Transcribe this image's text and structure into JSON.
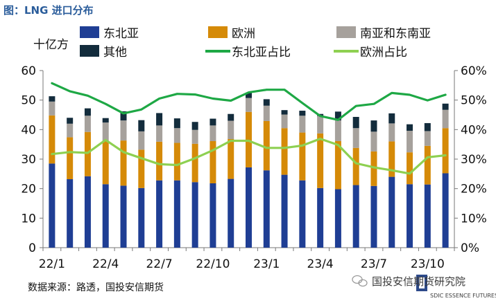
{
  "header": {
    "title": "图：LNG 进口分布"
  },
  "source": "数据来源：路透，国投安信期货",
  "watermark": {
    "text": "国投安信期货研究院",
    "logo_sub": "SDIC ESSENCE FUTURES"
  },
  "colors": {
    "northeast_asia": "#1f3e94",
    "europe": "#d58a08",
    "south_asia": "#a6a19c",
    "other": "#132c3c",
    "line_northeast": "#1ea845",
    "line_europe": "#8ed051",
    "title": "#2b5d9b",
    "axis": "#777777"
  },
  "chart_data": {
    "type": "bar",
    "stacked": true,
    "title": "图：LNG 进口分布",
    "ylabel_left": "十亿方",
    "ylim_left": [
      0,
      60
    ],
    "yticks_left": [
      "0",
      "10",
      "20",
      "30",
      "40",
      "50",
      "60"
    ],
    "ylim_right": [
      0,
      0.6
    ],
    "yticks_right": [
      "0%",
      "10%",
      "20%",
      "30%",
      "40%",
      "50%",
      "60%"
    ],
    "x_tick_labels": [
      {
        "index": 0,
        "label": "22/1"
      },
      {
        "index": 3,
        "label": "22/4"
      },
      {
        "index": 6,
        "label": "22/7"
      },
      {
        "index": 9,
        "label": "22/10"
      },
      {
        "index": 12,
        "label": "23/1"
      },
      {
        "index": 15,
        "label": "23/4"
      },
      {
        "index": 18,
        "label": "23/7"
      },
      {
        "index": 21,
        "label": "23/10"
      }
    ],
    "categories": [
      "22/1",
      "22/2",
      "22/3",
      "22/4",
      "22/5",
      "22/6",
      "22/7",
      "22/8",
      "22/9",
      "22/10",
      "22/11",
      "22/12",
      "23/1",
      "23/2",
      "23/3",
      "23/4",
      "23/5",
      "23/6",
      "23/7",
      "23/8",
      "23/9",
      "23/10",
      "23/11"
    ],
    "series": [
      {
        "name": "东北亚",
        "key": "northeast_asia",
        "values": [
          28.5,
          23.2,
          24.2,
          21.5,
          21.0,
          20.2,
          22.8,
          22.8,
          22.2,
          21.8,
          23.3,
          27.2,
          26.2,
          24.7,
          22.8,
          20.2,
          19.8,
          21.2,
          20.9,
          24.0,
          21.5,
          21.4,
          25.2
        ]
      },
      {
        "name": "欧洲",
        "key": "europe",
        "values": [
          16.3,
          14.2,
          15.0,
          14.7,
          15.3,
          13.0,
          13.1,
          12.7,
          13.0,
          14.3,
          13.5,
          18.8,
          16.7,
          15.8,
          16.2,
          18.5,
          16.3,
          12.6,
          11.7,
          12.0,
          10.8,
          13.1,
          15.3
        ]
      },
      {
        "name": "南亚和东南亚",
        "key": "south_asia",
        "values": [
          4.7,
          4.6,
          5.5,
          6.2,
          6.8,
          6.2,
          5.5,
          5.0,
          4.7,
          5.3,
          6.2,
          4.7,
          5.2,
          4.6,
          5.7,
          5.9,
          7.0,
          6.7,
          6.7,
          6.1,
          7.3,
          5.0,
          6.2
        ]
      },
      {
        "name": "其他",
        "key": "other",
        "values": [
          1.8,
          2.0,
          2.5,
          1.5,
          3.1,
          3.8,
          4.2,
          3.3,
          2.7,
          2.3,
          2.3,
          1.8,
          2.2,
          1.5,
          1.7,
          0.7,
          3.0,
          3.8,
          3.8,
          3.4,
          2.2,
          2.7,
          2.1
        ]
      }
    ],
    "line_series": [
      {
        "name": "东北亚占比",
        "key": "line_northeast",
        "axis": "right",
        "values": [
          0.557,
          0.53,
          0.515,
          0.487,
          0.455,
          0.468,
          0.505,
          0.521,
          0.519,
          0.505,
          0.498,
          0.526,
          0.535,
          0.535,
          0.49,
          0.446,
          0.433,
          0.48,
          0.487,
          0.524,
          0.518,
          0.499,
          0.518
        ]
      },
      {
        "name": "欧洲占比",
        "key": "line_europe",
        "axis": "right",
        "values": [
          0.317,
          0.324,
          0.321,
          0.365,
          0.324,
          0.303,
          0.283,
          0.28,
          0.303,
          0.33,
          0.362,
          0.362,
          0.338,
          0.338,
          0.346,
          0.369,
          0.348,
          0.286,
          0.272,
          0.262,
          0.251,
          0.306,
          0.313
        ]
      }
    ],
    "legend": [
      {
        "label": "东北亚",
        "kind": "box",
        "key": "northeast_asia"
      },
      {
        "label": "欧洲",
        "kind": "box",
        "key": "europe"
      },
      {
        "label": "南亚和东南亚",
        "kind": "box",
        "key": "south_asia"
      },
      {
        "label": "其他",
        "kind": "box",
        "key": "other"
      },
      {
        "label": "东北亚占比",
        "kind": "line",
        "key": "line_northeast"
      },
      {
        "label": "欧洲占比",
        "kind": "line",
        "key": "line_europe"
      }
    ]
  }
}
